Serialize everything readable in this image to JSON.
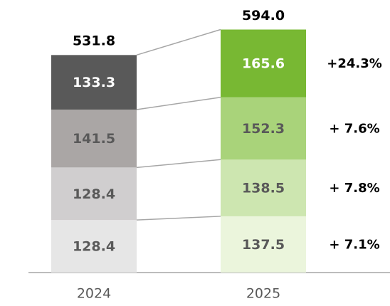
{
  "chart_data": {
    "type": "stacked-bar",
    "categories": [
      "2024",
      "2025"
    ],
    "series": [
      {
        "colors": [
          "#e6e6e6",
          "#ebf5dc"
        ],
        "label_color": "#595959",
        "values": [
          128.4,
          137.5
        ]
      },
      {
        "colors": [
          "#d0cecf",
          "#cde6b0"
        ],
        "label_color": "#595959",
        "values": [
          128.4,
          138.5
        ]
      },
      {
        "colors": [
          "#aaa6a5",
          "#a9d37a"
        ],
        "label_color": "#595959",
        "values": [
          141.5,
          152.3
        ]
      },
      {
        "colors": [
          "#595959",
          "#78b833"
        ],
        "label_color": "#ffffff",
        "values": [
          133.3,
          165.6
        ]
      }
    ],
    "totals": {
      "values": [
        531.8,
        594
      ],
      "value_labels": [
        "531.8",
        "594.0"
      ]
    },
    "growth": {
      "values": [
        7.1,
        7.8,
        7.6,
        24.3
      ],
      "value_labels": [
        "+ 7.1%",
        "+ 7.8%",
        "+ 7.6%",
        "+24.3%"
      ]
    }
  }
}
